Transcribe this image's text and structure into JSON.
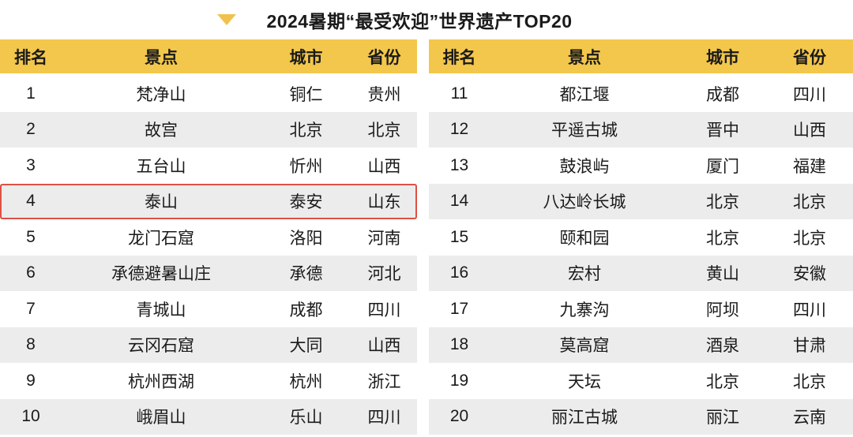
{
  "title": {
    "text": "2024暑期“最受欢迎”世界遗产TOP20",
    "marker_icon": "triangle-down"
  },
  "tables": {
    "left": {
      "headers": [
        "排名",
        "景点",
        "城市",
        "省份"
      ],
      "rows": [
        [
          "1",
          "梵净山",
          "铜仁",
          "贵州"
        ],
        [
          "2",
          "故宫",
          "北京",
          "北京"
        ],
        [
          "3",
          "五台山",
          "忻州",
          "山西"
        ],
        [
          "4",
          "泰山",
          "泰安",
          "山东"
        ],
        [
          "5",
          "龙门石窟",
          "洛阳",
          "河南"
        ],
        [
          "6",
          "承德避暑山庄",
          "承德",
          "河北"
        ],
        [
          "7",
          "青城山",
          "成都",
          "四川"
        ],
        [
          "8",
          "云冈石窟",
          "大同",
          "山西"
        ],
        [
          "9",
          "杭州西湖",
          "杭州",
          "浙江"
        ],
        [
          "10",
          "峨眉山",
          "乐山",
          "四川"
        ]
      ],
      "highlighted_rank": "4"
    },
    "right": {
      "headers": [
        "排名",
        "景点",
        "城市",
        "省份"
      ],
      "rows": [
        [
          "11",
          "都江堰",
          "成都",
          "四川"
        ],
        [
          "12",
          "平遥古城",
          "晋中",
          "山西"
        ],
        [
          "13",
          "鼓浪屿",
          "厦门",
          "福建"
        ],
        [
          "14",
          "八达岭长城",
          "北京",
          "北京"
        ],
        [
          "15",
          "颐和园",
          "北京",
          "北京"
        ],
        [
          "16",
          "宏村",
          "黄山",
          "安徽"
        ],
        [
          "17",
          "九寨沟",
          "阿坝",
          "四川"
        ],
        [
          "18",
          "莫高窟",
          "酒泉",
          "甘肃"
        ],
        [
          "19",
          "天坛",
          "北京",
          "北京"
        ],
        [
          "20",
          "丽江古城",
          "丽江",
          "云南"
        ]
      ]
    }
  },
  "colors": {
    "header_bg": "#F3C74B",
    "row_alt_bg": "#ECECEC",
    "highlight_border": "#DD5144",
    "marker": "#F0C24D",
    "text": "#1A1A1A"
  },
  "chart_data": {
    "type": "table",
    "title": "2024暑期“最受欢迎”世界遗产TOP20",
    "columns": [
      "排名",
      "景点",
      "城市",
      "省份"
    ],
    "rows": [
      [
        "1",
        "梵净山",
        "铜仁",
        "贵州"
      ],
      [
        "2",
        "故宫",
        "北京",
        "北京"
      ],
      [
        "3",
        "五台山",
        "忻州",
        "山西"
      ],
      [
        "4",
        "泰山",
        "泰安",
        "山东"
      ],
      [
        "5",
        "龙门石窟",
        "洛阳",
        "河南"
      ],
      [
        "6",
        "承德避暑山庄",
        "承德",
        "河北"
      ],
      [
        "7",
        "青城山",
        "成都",
        "四川"
      ],
      [
        "8",
        "云冈石窟",
        "大同",
        "山西"
      ],
      [
        "9",
        "杭州西湖",
        "杭州",
        "浙江"
      ],
      [
        "10",
        "峨眉山",
        "乐山",
        "四川"
      ],
      [
        "11",
        "都江堰",
        "成都",
        "四川"
      ],
      [
        "12",
        "平遥古城",
        "晋中",
        "山西"
      ],
      [
        "13",
        "鼓浪屿",
        "厦门",
        "福建"
      ],
      [
        "14",
        "八达岭长城",
        "北京",
        "北京"
      ],
      [
        "15",
        "颐和园",
        "北京",
        "北京"
      ],
      [
        "16",
        "宏村",
        "黄山",
        "安徽"
      ],
      [
        "17",
        "九寨沟",
        "阿坝",
        "四川"
      ],
      [
        "18",
        "莫高窟",
        "酒泉",
        "甘肃"
      ],
      [
        "19",
        "天坛",
        "北京",
        "北京"
      ],
      [
        "20",
        "丽江古城",
        "丽江",
        "云南"
      ]
    ],
    "highlighted_row": [
      "4",
      "泰山",
      "泰安",
      "山东"
    ],
    "layout": "two-column split: ranks 1-10 left, 11-20 right"
  }
}
